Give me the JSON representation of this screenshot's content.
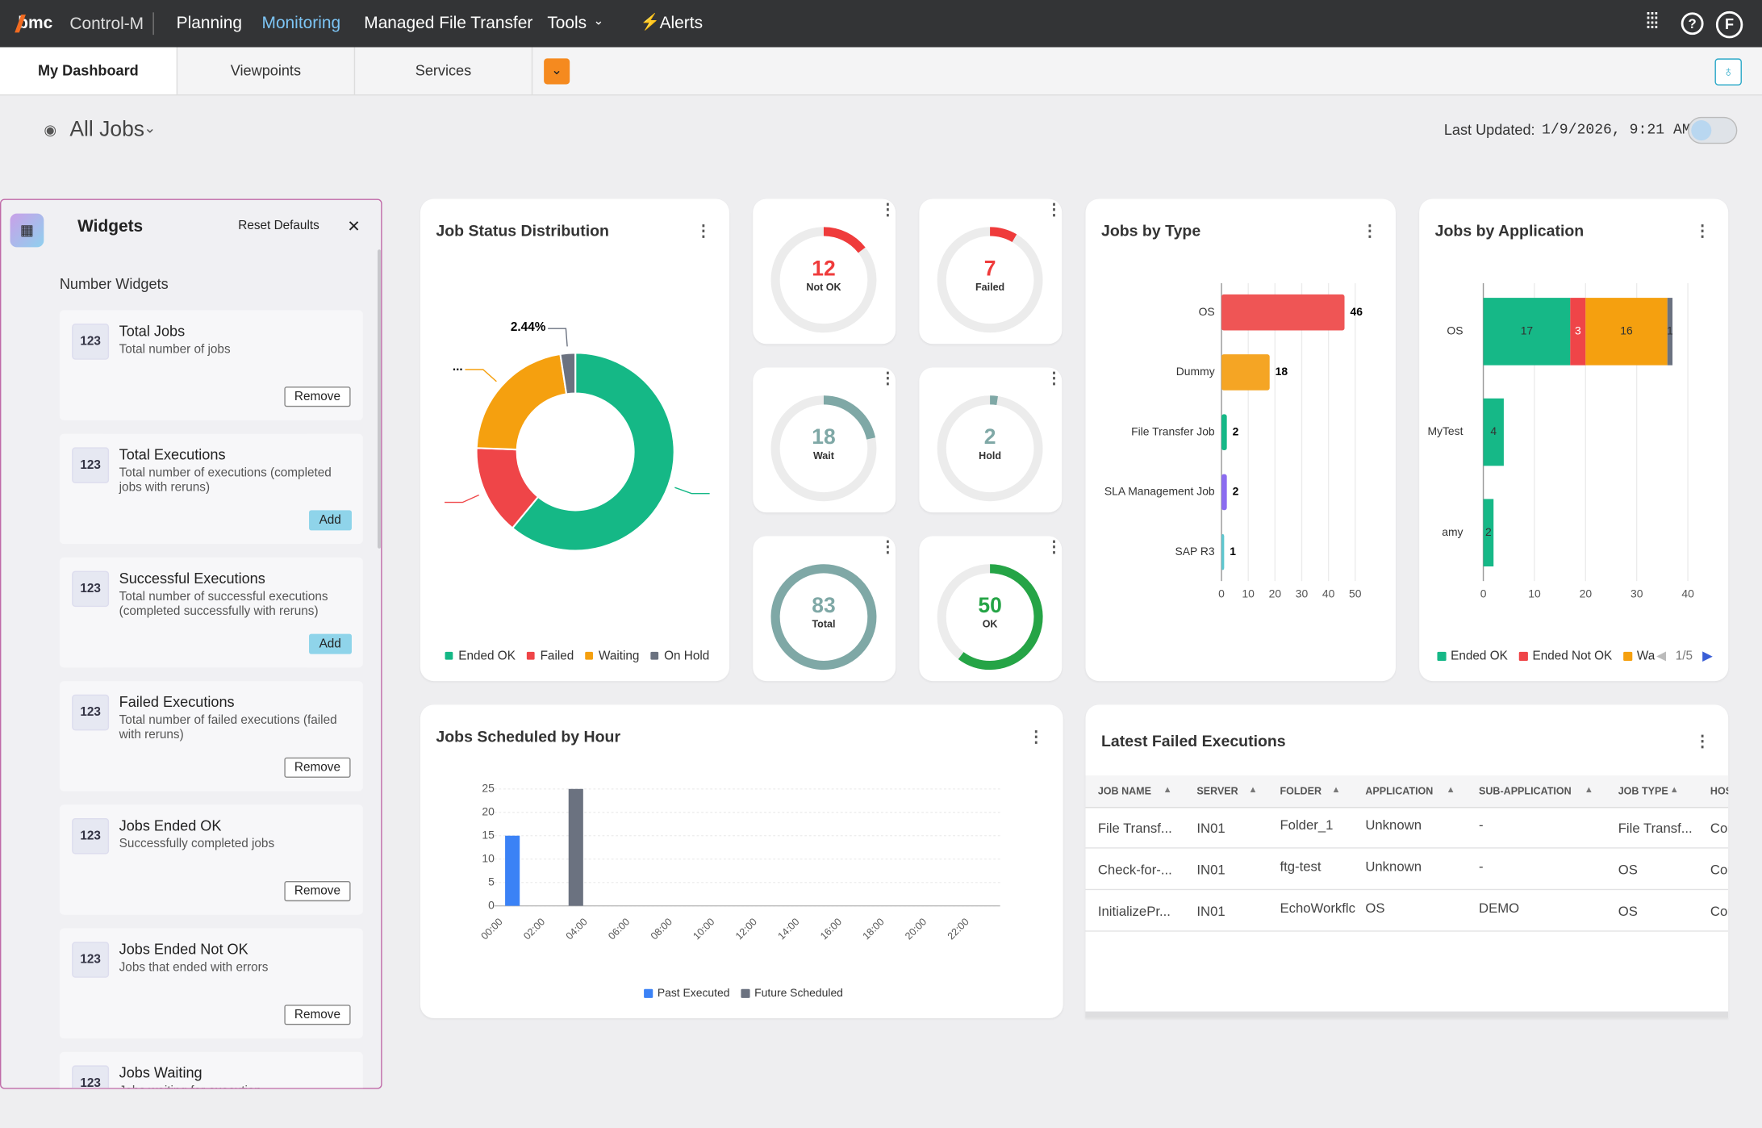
{
  "nav": {
    "brand": "bmc",
    "product": "Control-M",
    "links": [
      "Planning",
      "Monitoring",
      "Managed File Transfer",
      "Tools"
    ],
    "active": 1,
    "alerts": "Alerts",
    "avatar": "F"
  },
  "tabs": {
    "items": [
      "My Dashboard",
      "Viewpoints",
      "Services"
    ],
    "active": 0
  },
  "toolbar": {
    "view": "All Jobs",
    "updated_label": "Last Updated:",
    "updated": "1/9/2026, 9:21 AM"
  },
  "widgets_panel": {
    "title": "Widgets",
    "reset": "Reset Defaults",
    "section": "Number Widgets",
    "items": [
      {
        "icon": "123",
        "title": "Total Jobs",
        "desc": "Total number of jobs",
        "action": "Remove"
      },
      {
        "icon": "123",
        "title": "Total Executions",
        "desc": "Total number of executions (completed jobs with reruns)",
        "action": "Add"
      },
      {
        "icon": "123",
        "title": "Successful Executions",
        "desc": "Total number of successful executions (completed successfully with reruns)",
        "action": "Add"
      },
      {
        "icon": "123",
        "title": "Failed Executions",
        "desc": "Total number of failed executions (failed with reruns)",
        "action": "Remove"
      },
      {
        "icon": "123",
        "title": "Jobs Ended OK",
        "desc": "Successfully completed jobs",
        "action": "Remove"
      },
      {
        "icon": "123",
        "title": "Jobs Ended Not OK",
        "desc": "Jobs that ended with errors",
        "action": "Remove"
      },
      {
        "icon": "123",
        "title": "Jobs Waiting",
        "desc": "Jobs waiting for execution"
      }
    ]
  },
  "job_status": {
    "type": "donut",
    "title": "Job Status Distribution",
    "categories": [
      "Ended OK",
      "Failed",
      "Waiting",
      "On Hold"
    ],
    "values": [
      50,
      12,
      18,
      2
    ],
    "value_labels": [
      null,
      null,
      null,
      "2.44%"
    ],
    "colors": [
      "#15b886",
      "#ef4548",
      "#f5a00f",
      "#6b7280"
    ],
    "annotation": "..."
  },
  "gauges": {
    "type": "gauge",
    "items": [
      {
        "value": 12,
        "label": "Not OK",
        "color": "#ef3b3b"
      },
      {
        "value": 7,
        "label": "Failed",
        "color": "#ef3b3b"
      },
      {
        "value": 18,
        "label": "Wait",
        "color": "#7fa8a6"
      },
      {
        "value": 2,
        "label": "Hold",
        "color": "#7fa8a6"
      },
      {
        "value": 83,
        "label": "Total",
        "color": "#7fa8a6"
      },
      {
        "value": 50,
        "label": "OK",
        "color": "#25a446"
      }
    ]
  },
  "jobs_by_type": {
    "type": "hbar",
    "title": "Jobs by Type",
    "categories": [
      "OS",
      "Dummy",
      "File Transfer Job",
      "SLA Management Job",
      "SAP R3"
    ],
    "values": [
      46,
      18,
      2,
      2,
      1
    ],
    "colors": [
      "#ef5555",
      "#f5a524",
      "#16b887",
      "#8b6cf0",
      "#5fc7d0"
    ],
    "xlim": [
      0,
      50
    ],
    "xticks": [
      0,
      10,
      20,
      30,
      40,
      50
    ]
  },
  "jobs_by_app": {
    "type": "stacked_hbar",
    "title": "Jobs by Application",
    "categories": [
      "OS",
      "MyTest",
      "amy"
    ],
    "series": [
      {
        "name": "Ended OK",
        "color": "#16b887",
        "values": [
          17,
          4,
          2
        ]
      },
      {
        "name": "Ended Not OK",
        "color": "#ef4548",
        "values": [
          3,
          0,
          0
        ]
      },
      {
        "name": "Wa",
        "color": "#f5a00f",
        "values": [
          16,
          0,
          0
        ]
      },
      {
        "color": "#6b7280",
        "values": [
          1,
          0,
          0
        ]
      }
    ],
    "xlim": [
      0,
      40
    ],
    "xticks": [
      0,
      10,
      20,
      30,
      40
    ],
    "legend_page": "1/5"
  },
  "by_hour": {
    "type": "bar",
    "title": "Jobs Scheduled by Hour",
    "categories": [
      "00:00",
      "02:00",
      "04:00",
      "06:00",
      "08:00",
      "10:00",
      "12:00",
      "14:00",
      "16:00",
      "18:00",
      "20:00",
      "22:00"
    ],
    "series": [
      {
        "name": "Past Executed",
        "color": "#3b82f6",
        "values": [
          15,
          0,
          0,
          0,
          0,
          0,
          0,
          0,
          0,
          0,
          0,
          0
        ]
      },
      {
        "name": "Future Scheduled",
        "color": "#6b7280",
        "values": [
          0,
          0,
          25,
          0,
          0,
          0,
          0,
          0,
          0,
          0,
          0,
          0
        ]
      }
    ],
    "ylim": [
      0,
      25
    ],
    "yticks": [
      0,
      5,
      10,
      15,
      20,
      25
    ],
    "grid": true
  },
  "failed_table": {
    "title": "Latest Failed Executions",
    "columns": [
      "JOB NAME",
      "SERVER",
      "FOLDER",
      "APPLICATION",
      "SUB-APPLICATION",
      "JOB TYPE",
      "HOS"
    ],
    "rows": [
      [
        "File Transf...",
        "IN01",
        "Folder_1",
        "Unknown",
        "-",
        "File Transf...",
        "Cor"
      ],
      [
        "Check-for-...",
        "IN01",
        "ftg-test",
        "Unknown",
        "-",
        "OS",
        "Cor"
      ],
      [
        "InitializePr...",
        "IN01",
        "EchoWorkflc",
        "OS",
        "DEMO",
        "OS",
        "Cor"
      ]
    ]
  }
}
